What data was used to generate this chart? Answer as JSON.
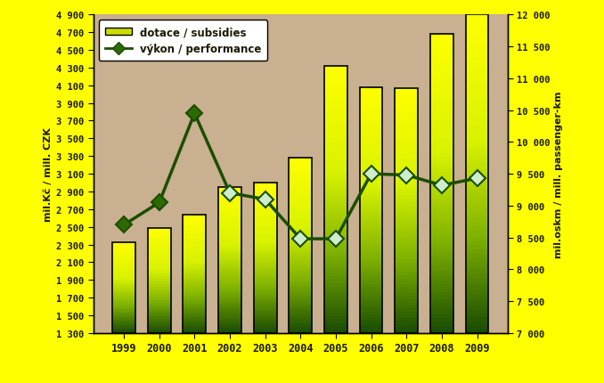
{
  "years": [
    1999,
    2000,
    2001,
    2002,
    2003,
    2004,
    2005,
    2006,
    2007,
    2008,
    2009
  ],
  "subsidies": [
    2330,
    2490,
    2640,
    2950,
    3000,
    3280,
    4320,
    4080,
    4070,
    4680,
    4900
  ],
  "performance": [
    8700,
    9050,
    10450,
    9200,
    9100,
    8480,
    8480,
    9500,
    9480,
    9320,
    9430
  ],
  "left_ylim": [
    1300,
    4900
  ],
  "right_ylim": [
    7000,
    12000
  ],
  "left_yticks": [
    1300,
    1500,
    1700,
    1900,
    2100,
    2300,
    2500,
    2700,
    2900,
    3100,
    3300,
    3500,
    3700,
    3900,
    4100,
    4300,
    4500,
    4700,
    4900
  ],
  "right_yticks": [
    7000,
    7500,
    8000,
    8500,
    9000,
    9500,
    10000,
    10500,
    11000,
    11500,
    12000
  ],
  "left_ylabel": "mil.Kč / mill. CZK",
  "right_ylabel": "mil.oskm / mill. passenger-km",
  "legend_subsidy": "dotace / subsidies",
  "legend_perf": "výkon / performance",
  "bg_outer": "#ffff00",
  "bg_plot": "#c8b090",
  "line_color": "#1a4d00",
  "marker_facecolor_dark": "#2d6a00",
  "marker_facecolor_light": "#88dd44",
  "marker_edge": "#1a4d00",
  "bar_color_top": "#ffff00",
  "bar_color_mid": "#ccee00",
  "bar_color_bottom": "#1a5200",
  "figwidth": 6.78,
  "figheight": 4.31,
  "dpi": 100
}
